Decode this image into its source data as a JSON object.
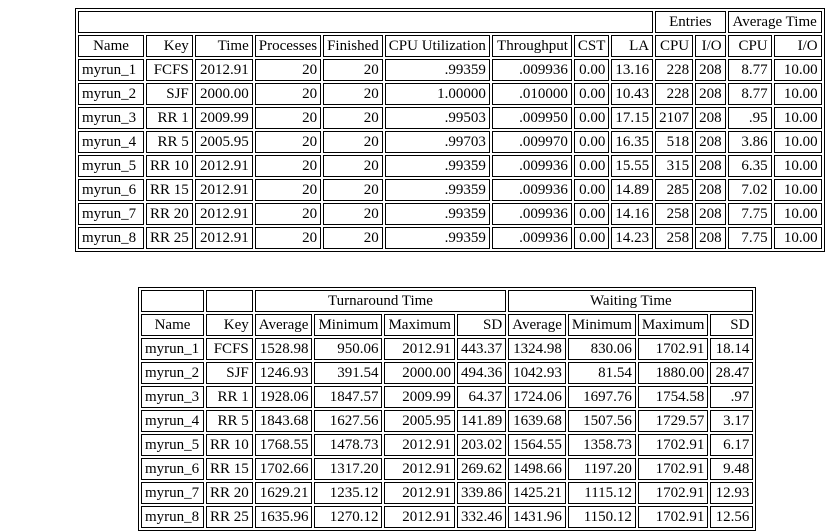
{
  "summary_table": {
    "group_row": [
      {
        "label": "",
        "colspan": 9
      },
      {
        "label": "Entries",
        "colspan": 2
      },
      {
        "label": "Average Time",
        "colspan": 2
      }
    ],
    "columns": [
      "Name",
      "Key",
      "Time",
      "Processes",
      "Finished",
      "CPU Utilization",
      "Throughput",
      "CST",
      "LA",
      "CPU",
      "I/O",
      "CPU",
      "I/O"
    ],
    "rows": [
      [
        "myrun_1",
        "FCFS",
        "2012.91",
        "20",
        "20",
        ".99359",
        ".009936",
        "0.00",
        "13.16",
        "228",
        "208",
        "8.77",
        "10.00"
      ],
      [
        "myrun_2",
        "SJF",
        "2000.00",
        "20",
        "20",
        "1.00000",
        ".010000",
        "0.00",
        "10.43",
        "228",
        "208",
        "8.77",
        "10.00"
      ],
      [
        "myrun_3",
        "RR 1",
        "2009.99",
        "20",
        "20",
        ".99503",
        ".009950",
        "0.00",
        "17.15",
        "2107",
        "208",
        ".95",
        "10.00"
      ],
      [
        "myrun_4",
        "RR 5",
        "2005.95",
        "20",
        "20",
        ".99703",
        ".009970",
        "0.00",
        "16.35",
        "518",
        "208",
        "3.86",
        "10.00"
      ],
      [
        "myrun_5",
        "RR 10",
        "2012.91",
        "20",
        "20",
        ".99359",
        ".009936",
        "0.00",
        "15.55",
        "315",
        "208",
        "6.35",
        "10.00"
      ],
      [
        "myrun_6",
        "RR 15",
        "2012.91",
        "20",
        "20",
        ".99359",
        ".009936",
        "0.00",
        "14.89",
        "285",
        "208",
        "7.02",
        "10.00"
      ],
      [
        "myrun_7",
        "RR 20",
        "2012.91",
        "20",
        "20",
        ".99359",
        ".009936",
        "0.00",
        "14.16",
        "258",
        "208",
        "7.75",
        "10.00"
      ],
      [
        "myrun_8",
        "RR 25",
        "2012.91",
        "20",
        "20",
        ".99359",
        ".009936",
        "0.00",
        "14.23",
        "258",
        "208",
        "7.75",
        "10.00"
      ]
    ]
  },
  "times_table": {
    "group_row": [
      {
        "label": "",
        "colspan": 1
      },
      {
        "label": "",
        "colspan": 1
      },
      {
        "label": "Turnaround Time",
        "colspan": 4
      },
      {
        "label": "Waiting Time",
        "colspan": 4
      }
    ],
    "columns": [
      "Name",
      "Key",
      "Average",
      "Minimum",
      "Maximum",
      "SD",
      "Average",
      "Minimum",
      "Maximum",
      "SD"
    ],
    "rows": [
      [
        "myrun_1",
        "FCFS",
        "1528.98",
        "950.06",
        "2012.91",
        "443.37",
        "1324.98",
        "830.06",
        "1702.91",
        "18.14"
      ],
      [
        "myrun_2",
        "SJF",
        "1246.93",
        "391.54",
        "2000.00",
        "494.36",
        "1042.93",
        "81.54",
        "1880.00",
        "28.47"
      ],
      [
        "myrun_3",
        "RR 1",
        "1928.06",
        "1847.57",
        "2009.99",
        "64.37",
        "1724.06",
        "1697.76",
        "1754.58",
        ".97"
      ],
      [
        "myrun_4",
        "RR 5",
        "1843.68",
        "1627.56",
        "2005.95",
        "141.89",
        "1639.68",
        "1507.56",
        "1729.57",
        "3.17"
      ],
      [
        "myrun_5",
        "RR 10",
        "1768.55",
        "1478.73",
        "2012.91",
        "203.02",
        "1564.55",
        "1358.73",
        "1702.91",
        "6.17"
      ],
      [
        "myrun_6",
        "RR 15",
        "1702.66",
        "1317.20",
        "2012.91",
        "269.62",
        "1498.66",
        "1197.20",
        "1702.91",
        "9.48"
      ],
      [
        "myrun_7",
        "RR 20",
        "1629.21",
        "1235.12",
        "2012.91",
        "339.86",
        "1425.21",
        "1115.12",
        "1702.91",
        "12.93"
      ],
      [
        "myrun_8",
        "RR 25",
        "1635.96",
        "1270.12",
        "2012.91",
        "332.46",
        "1431.96",
        "1150.12",
        "1702.91",
        "12.56"
      ]
    ]
  }
}
